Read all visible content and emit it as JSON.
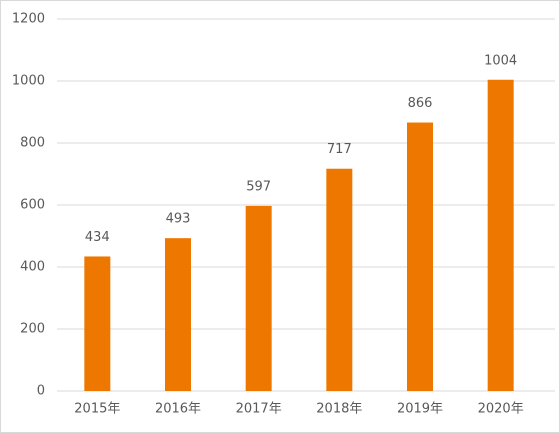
{
  "chart_data": {
    "type": "bar",
    "categories": [
      "2015年",
      "2016年",
      "2017年",
      "2018年",
      "2019年",
      "2020年"
    ],
    "values": [
      434,
      493,
      597,
      717,
      866,
      1004
    ],
    "color": "#ee7700",
    "ylim": [
      0,
      1200
    ],
    "yticks": [
      0,
      200,
      400,
      600,
      800,
      1000,
      1200
    ],
    "grid": true,
    "data_labels": true
  }
}
